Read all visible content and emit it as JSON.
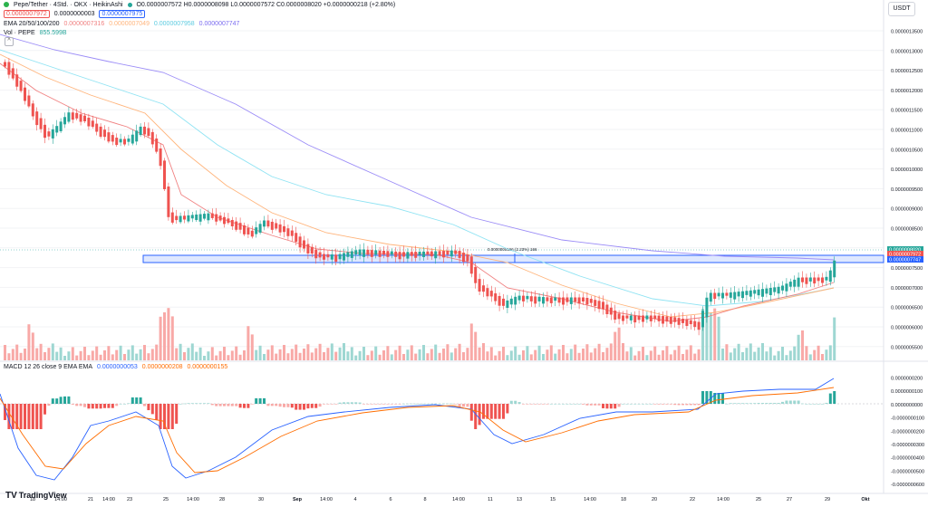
{
  "header": {
    "symbol": "Pepe/Tether · 4Std. · OKX · HeikinAshi",
    "ohlc": "O0.0000007572 H0.0000008098 L0.0000007572 C0.0000008020 +0.0000000218 (+2.80%)",
    "bid": "0.0000007972",
    "spread": "0.0000000003",
    "ask": "0.0000007975",
    "ema_label": "EMA 20/50/100/200",
    "ema_values": [
      "0.0000007316",
      "0.0000007049",
      "0.0000007958",
      "0.0000007747"
    ],
    "vol_label": "Vol · PEPE",
    "vol_value": "855.599B",
    "currency_button": "USDT",
    "collapse_icon": "^"
  },
  "macd": {
    "label": "MACD 12 26 close 9 EMA EMA",
    "values": [
      "0.0000000053",
      "0.0000000208",
      "0.0000000155"
    ]
  },
  "colors": {
    "up": "#26a69a",
    "down": "#ef5350",
    "up_vol": "#9ed7d2",
    "down_vol": "#f8a9a7",
    "ema20": "#f08080",
    "ema50": "#ffb47b",
    "ema100": "#8fe3f3",
    "ema200": "#9b8cf7",
    "zone": "#2962ff"
  },
  "price_axis": [
    "0.0000013500",
    "0.0000013000",
    "0.0000012500",
    "0.0000012000",
    "0.0000011500",
    "0.0000011000",
    "0.0000010500",
    "0.0000010000",
    "0.0000009500",
    "0.0000009000",
    "0.0000008500",
    "0.0000008000",
    "0.0000007500",
    "0.0000007000",
    "0.0000006500",
    "0.0000006000",
    "0.0000005500"
  ],
  "price_tags": [
    "0.0000008020",
    "0.0000007972",
    "0.0000007747"
  ],
  "macd_axis": [
    "0.0000000200",
    "0.0000000100",
    "0.0000000000",
    "-0.0000000100",
    "-0.0000000200",
    "-0.0000000300",
    "-0.0000000400",
    "-0.0000000500",
    "-0.0000000600"
  ],
  "time_axis": [
    "18",
    "14:00",
    "21",
    "14:00",
    "23",
    "25",
    "14:00",
    "28",
    "30",
    "Sep",
    "14:00",
    "4",
    "6",
    "8",
    "14:00",
    "11",
    "13",
    "15",
    "14:00",
    "18",
    "20",
    "22",
    "14:00",
    "25",
    "27",
    "29",
    "Okt"
  ],
  "measure_label": "0.0000000166 (2.23%) 166",
  "footer": {
    "brand": "TradingView"
  }
}
